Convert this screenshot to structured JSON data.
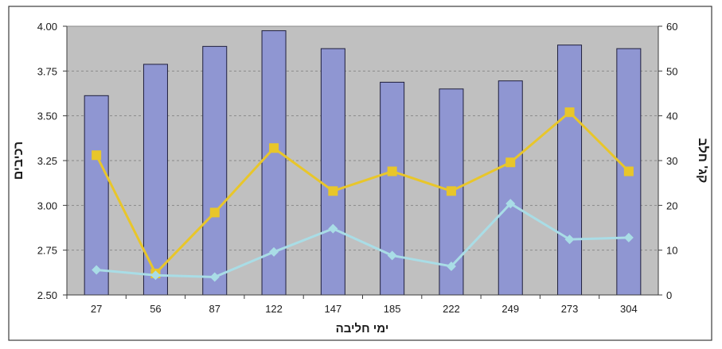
{
  "chart_data": {
    "type": "bar",
    "xlabel": "ימי חליבה",
    "ylabel_left": "רכיבים",
    "ylabel_right": "קג' חלב",
    "categories": [
      "27",
      "56",
      "87",
      "122",
      "147",
      "185",
      "222",
      "249",
      "273",
      "304"
    ],
    "left_axis": {
      "ylim": [
        2.5,
        4.0
      ],
      "ticks": [
        "2.50",
        "2.75",
        "3.00",
        "3.25",
        "3.50",
        "3.75",
        "4.00"
      ]
    },
    "right_axis": {
      "ylim": [
        0,
        60
      ],
      "ticks": [
        "0",
        "10",
        "20",
        "30",
        "40",
        "50",
        "60"
      ]
    },
    "series": [
      {
        "kind": "bar",
        "axis": "right",
        "color": "#8f96d2",
        "values": [
          44.5,
          51.5,
          55.5,
          59,
          55,
          47.5,
          46,
          47.8,
          55.8,
          55
        ]
      },
      {
        "kind": "line",
        "axis": "left",
        "color": "#e8c62a",
        "marker": "square",
        "values": [
          3.28,
          2.62,
          2.96,
          3.32,
          3.08,
          3.19,
          3.08,
          3.24,
          3.52,
          3.19
        ]
      },
      {
        "kind": "line",
        "axis": "left",
        "color": "#a9dde6",
        "marker": "diamond",
        "values": [
          2.64,
          2.61,
          2.6,
          2.74,
          2.87,
          2.72,
          2.66,
          3.01,
          2.81,
          2.82
        ]
      }
    ],
    "grid": true,
    "plot_background": "#c0c0c0",
    "frame_color": "#3b3b3b"
  }
}
